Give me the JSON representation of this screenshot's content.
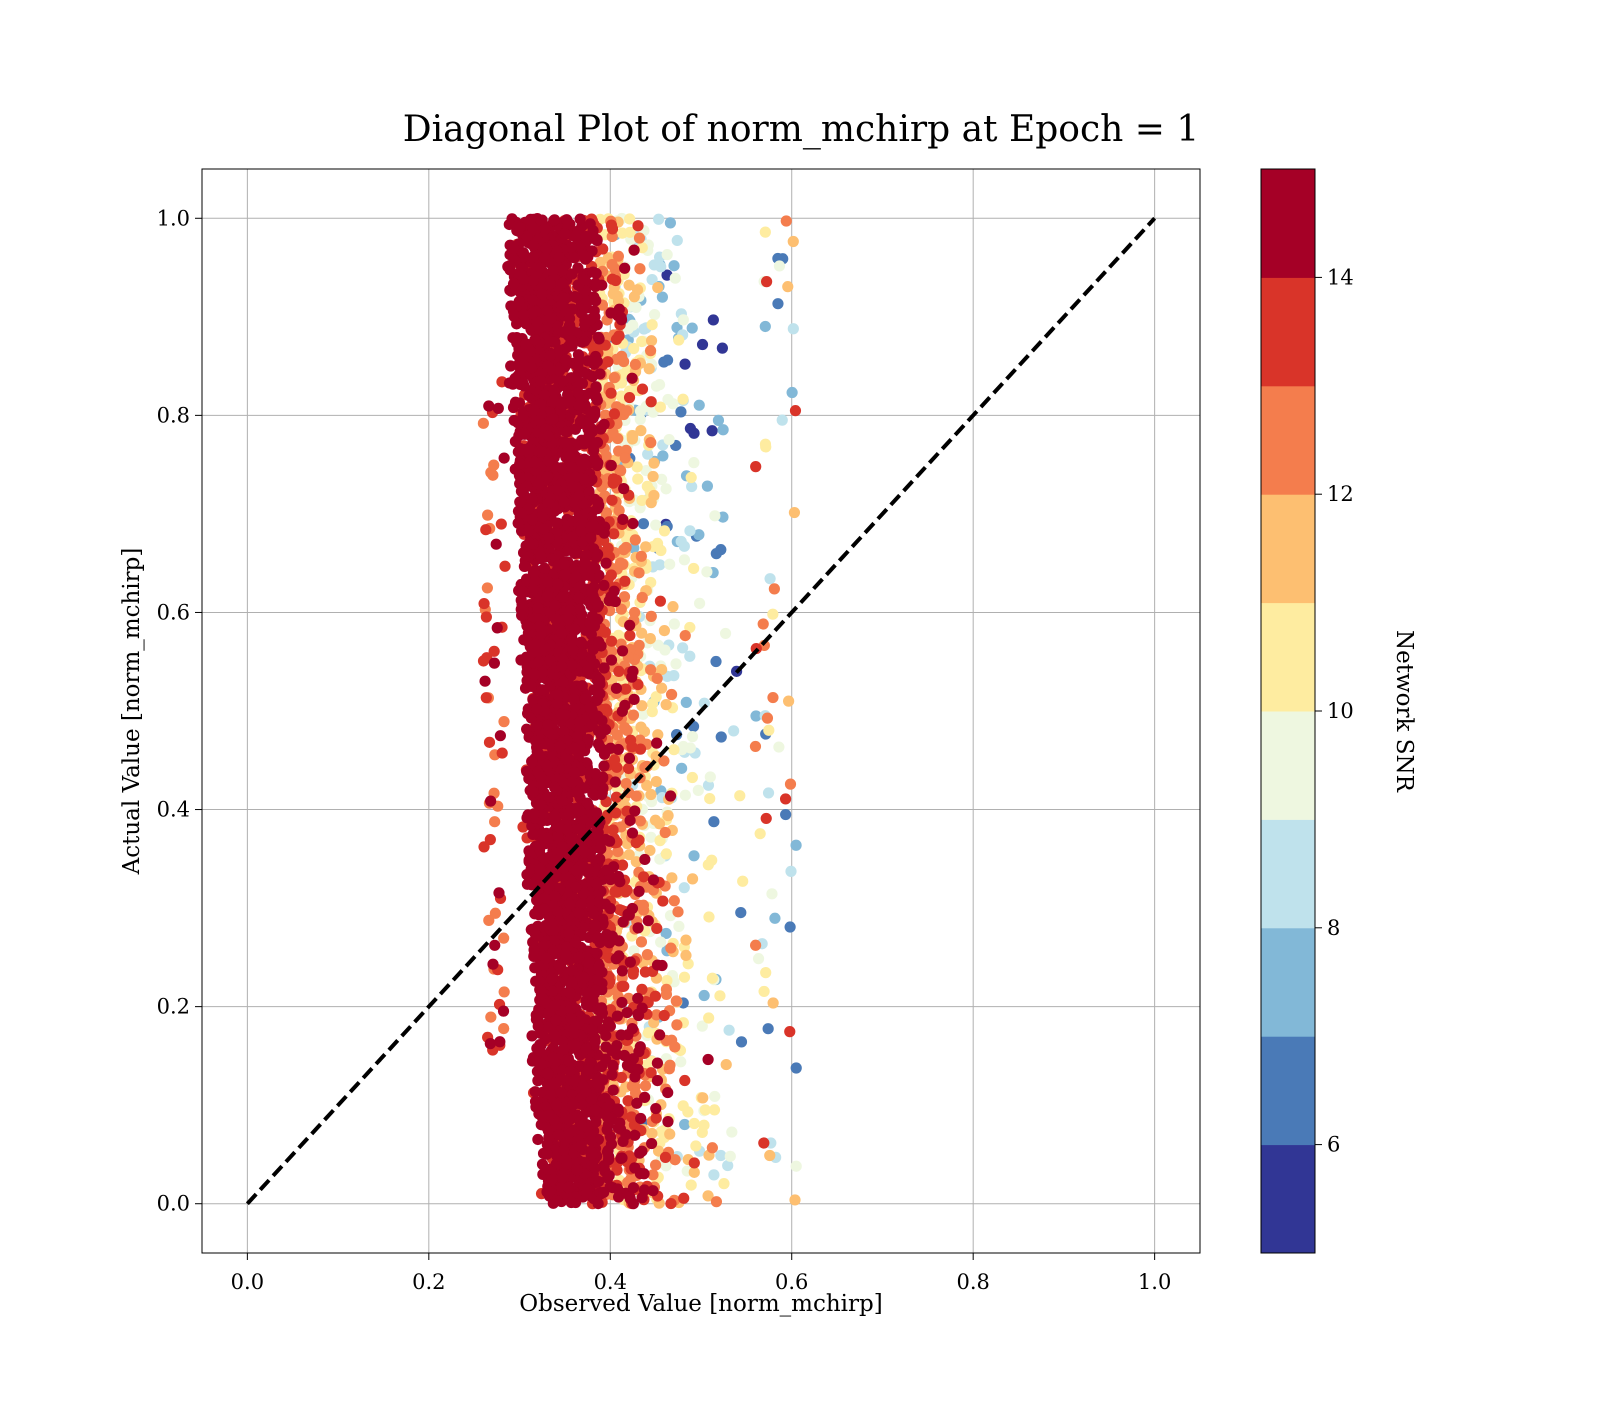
{
  "chart_data": {
    "type": "scatter",
    "title": "Diagonal Plot of norm_mchirp at Epoch = 1",
    "xlabel": "Observed Value [norm_mchirp]",
    "ylabel": "Actual Value [norm_mchirp]",
    "xlim": [
      -0.05,
      1.05
    ],
    "ylim": [
      -0.05,
      1.05
    ],
    "x_ticks": [
      "0.0",
      "0.2",
      "0.4",
      "0.6",
      "0.8",
      "1.0"
    ],
    "y_ticks": [
      "0.0",
      "0.2",
      "0.4",
      "0.6",
      "0.8",
      "1.0"
    ],
    "grid": true,
    "reference_line": {
      "from": [
        0,
        0
      ],
      "to": [
        1,
        1
      ],
      "style": "dashed",
      "color": "#000000"
    },
    "colorbar": {
      "label": "Network SNR",
      "range": [
        5,
        15
      ],
      "ticks": [
        "6",
        "8",
        "10",
        "12",
        "14"
      ],
      "colors": [
        "#313695",
        "#4a7ab7",
        "#82b8d7",
        "#bfe2ec",
        "#eef7e0",
        "#feeca0",
        "#fdbf71",
        "#f47d4d",
        "#d93429",
        "#a50026"
      ]
    },
    "series": [
      {
        "points_described": "dense cloud of predictions; observed value ~0.26–0.60, actual value 0.0–1.0; high-SNR points cluster near observed 0.28–0.40, lower-SNR points spread toward observed 0.45–0.58",
        "high_snr_center": {
          "x": [
            0.29,
            0.38
          ],
          "snr": 15
        },
        "mid_snr_band": {
          "x": [
            0.38,
            0.55
          ],
          "snr": [
            10,
            14
          ]
        },
        "low_snr_edge": {
          "x": [
            0.4,
            0.56
          ],
          "snr": [
            5,
            9
          ],
          "y_concentration": "upper"
        }
      }
    ]
  }
}
